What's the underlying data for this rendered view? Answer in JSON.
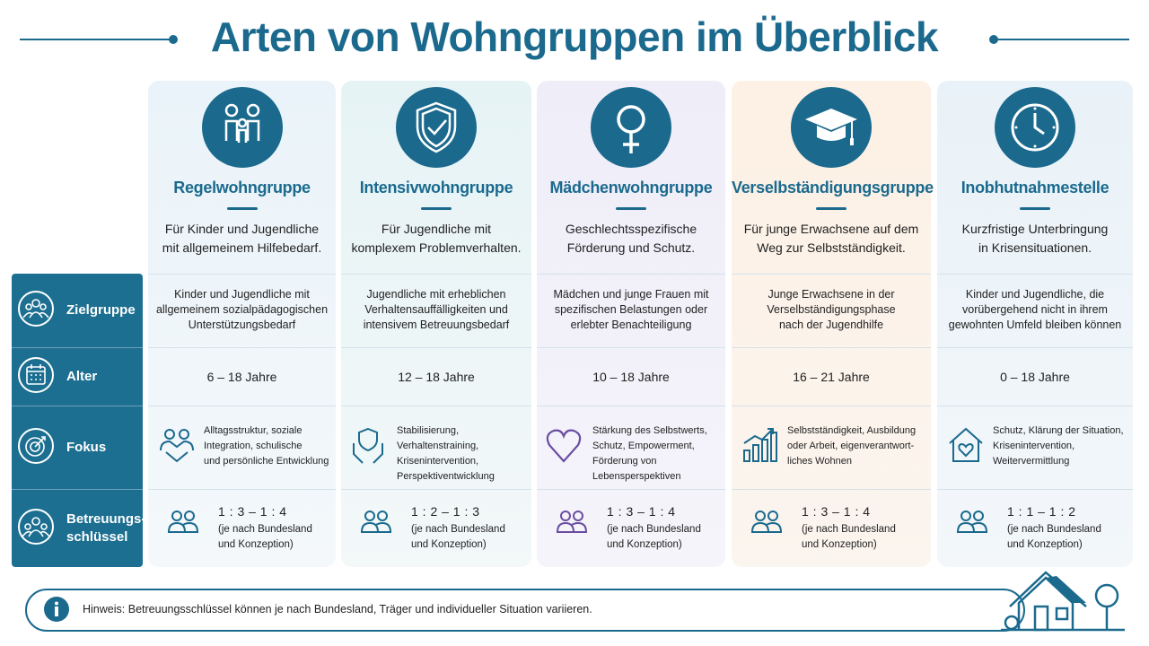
{
  "title": "Arten von Wohngruppen im Überblick",
  "row_labels": [
    "Zielgruppe",
    "Alter",
    "Fokus",
    "Betreuungs-schlüssel"
  ],
  "groups": [
    {
      "name": "Regelwohngruppe",
      "description": "Für Kinder und Jugendliche\nmit allgemeinem Hilfebedarf.",
      "target": "Kinder und Jugendliche mit\nallgemeinem sozialpädagogischen\nUnterstützungsbedarf",
      "age": "6 – 18 Jahre",
      "focus": "Alltagsstruktur, soziale\nIntegration, schulische\nund persönliche Entwicklung",
      "ratio": "1 : 3 – 1 : 4",
      "ratio_note": "(je nach Bundesland\nund Konzeption)"
    },
    {
      "name": "Intensivwohngruppe",
      "description": "Für Jugendliche mit\nkomplexem Problemverhalten.",
      "target": "Jugendliche mit erheblichen\nVerhaltensauffälligkeiten und\nintensivem Betreuungsbedarf",
      "age": "12 – 18 Jahre",
      "focus": "Stabilisierung, Verhaltenstraining,\nKrisenintervention,\nPerspektiventwicklung",
      "ratio": "1 : 2 – 1 : 3",
      "ratio_note": "(je nach Bundesland\nund Konzeption)"
    },
    {
      "name": "Mädchenwohngruppe",
      "description": "Geschlechtsspezifische\nFörderung und Schutz.",
      "target": "Mädchen und junge Frauen mit\nspezifischen Belastungen oder\nerlebter Benachteiligung",
      "age": "10 – 18 Jahre",
      "focus": "Stärkung des Selbstwerts,\nSchutz, Empowerment,\nFörderung von Lebensperspektiven",
      "ratio": "1 : 3 – 1 : 4",
      "ratio_note": "(je nach Bundesland\nund Konzeption)"
    },
    {
      "name": "Verselbständigungsgruppe",
      "description": "Für junge Erwachsene auf dem\nWeg zur Selbstständigkeit.",
      "target": "Junge Erwachsene in der\nVerselbständigungsphase\nnach der Jugendhilfe",
      "age": "16 – 21 Jahre",
      "focus": "Selbstständigkeit, Ausbildung\noder Arbeit, eigenverantwort-\nliches Wohnen",
      "ratio": "1 : 3 – 1 : 4",
      "ratio_note": "(je nach Bundesland\nund Konzeption)"
    },
    {
      "name": "Inobhutnahmestelle",
      "description": "Kurzfristige Unterbringung\nin Krisensituationen.",
      "target": "Kinder und Jugendliche, die\nvorübergehend nicht in ihrem\ngewohnten Umfeld bleiben können",
      "age": "0 – 18 Jahre",
      "focus": "Schutz, Klärung der Situation,\nKrisenintervention,\nWeitervermittlung",
      "ratio": "1 : 1 – 1 : 2",
      "ratio_note": "(je nach Bundesland\nund Konzeption)"
    }
  ],
  "note": {
    "label": "Hinweis:",
    "text": "Betreuungsschlüssel können je nach Bundesland, Träger und individueller Situation variieren."
  }
}
